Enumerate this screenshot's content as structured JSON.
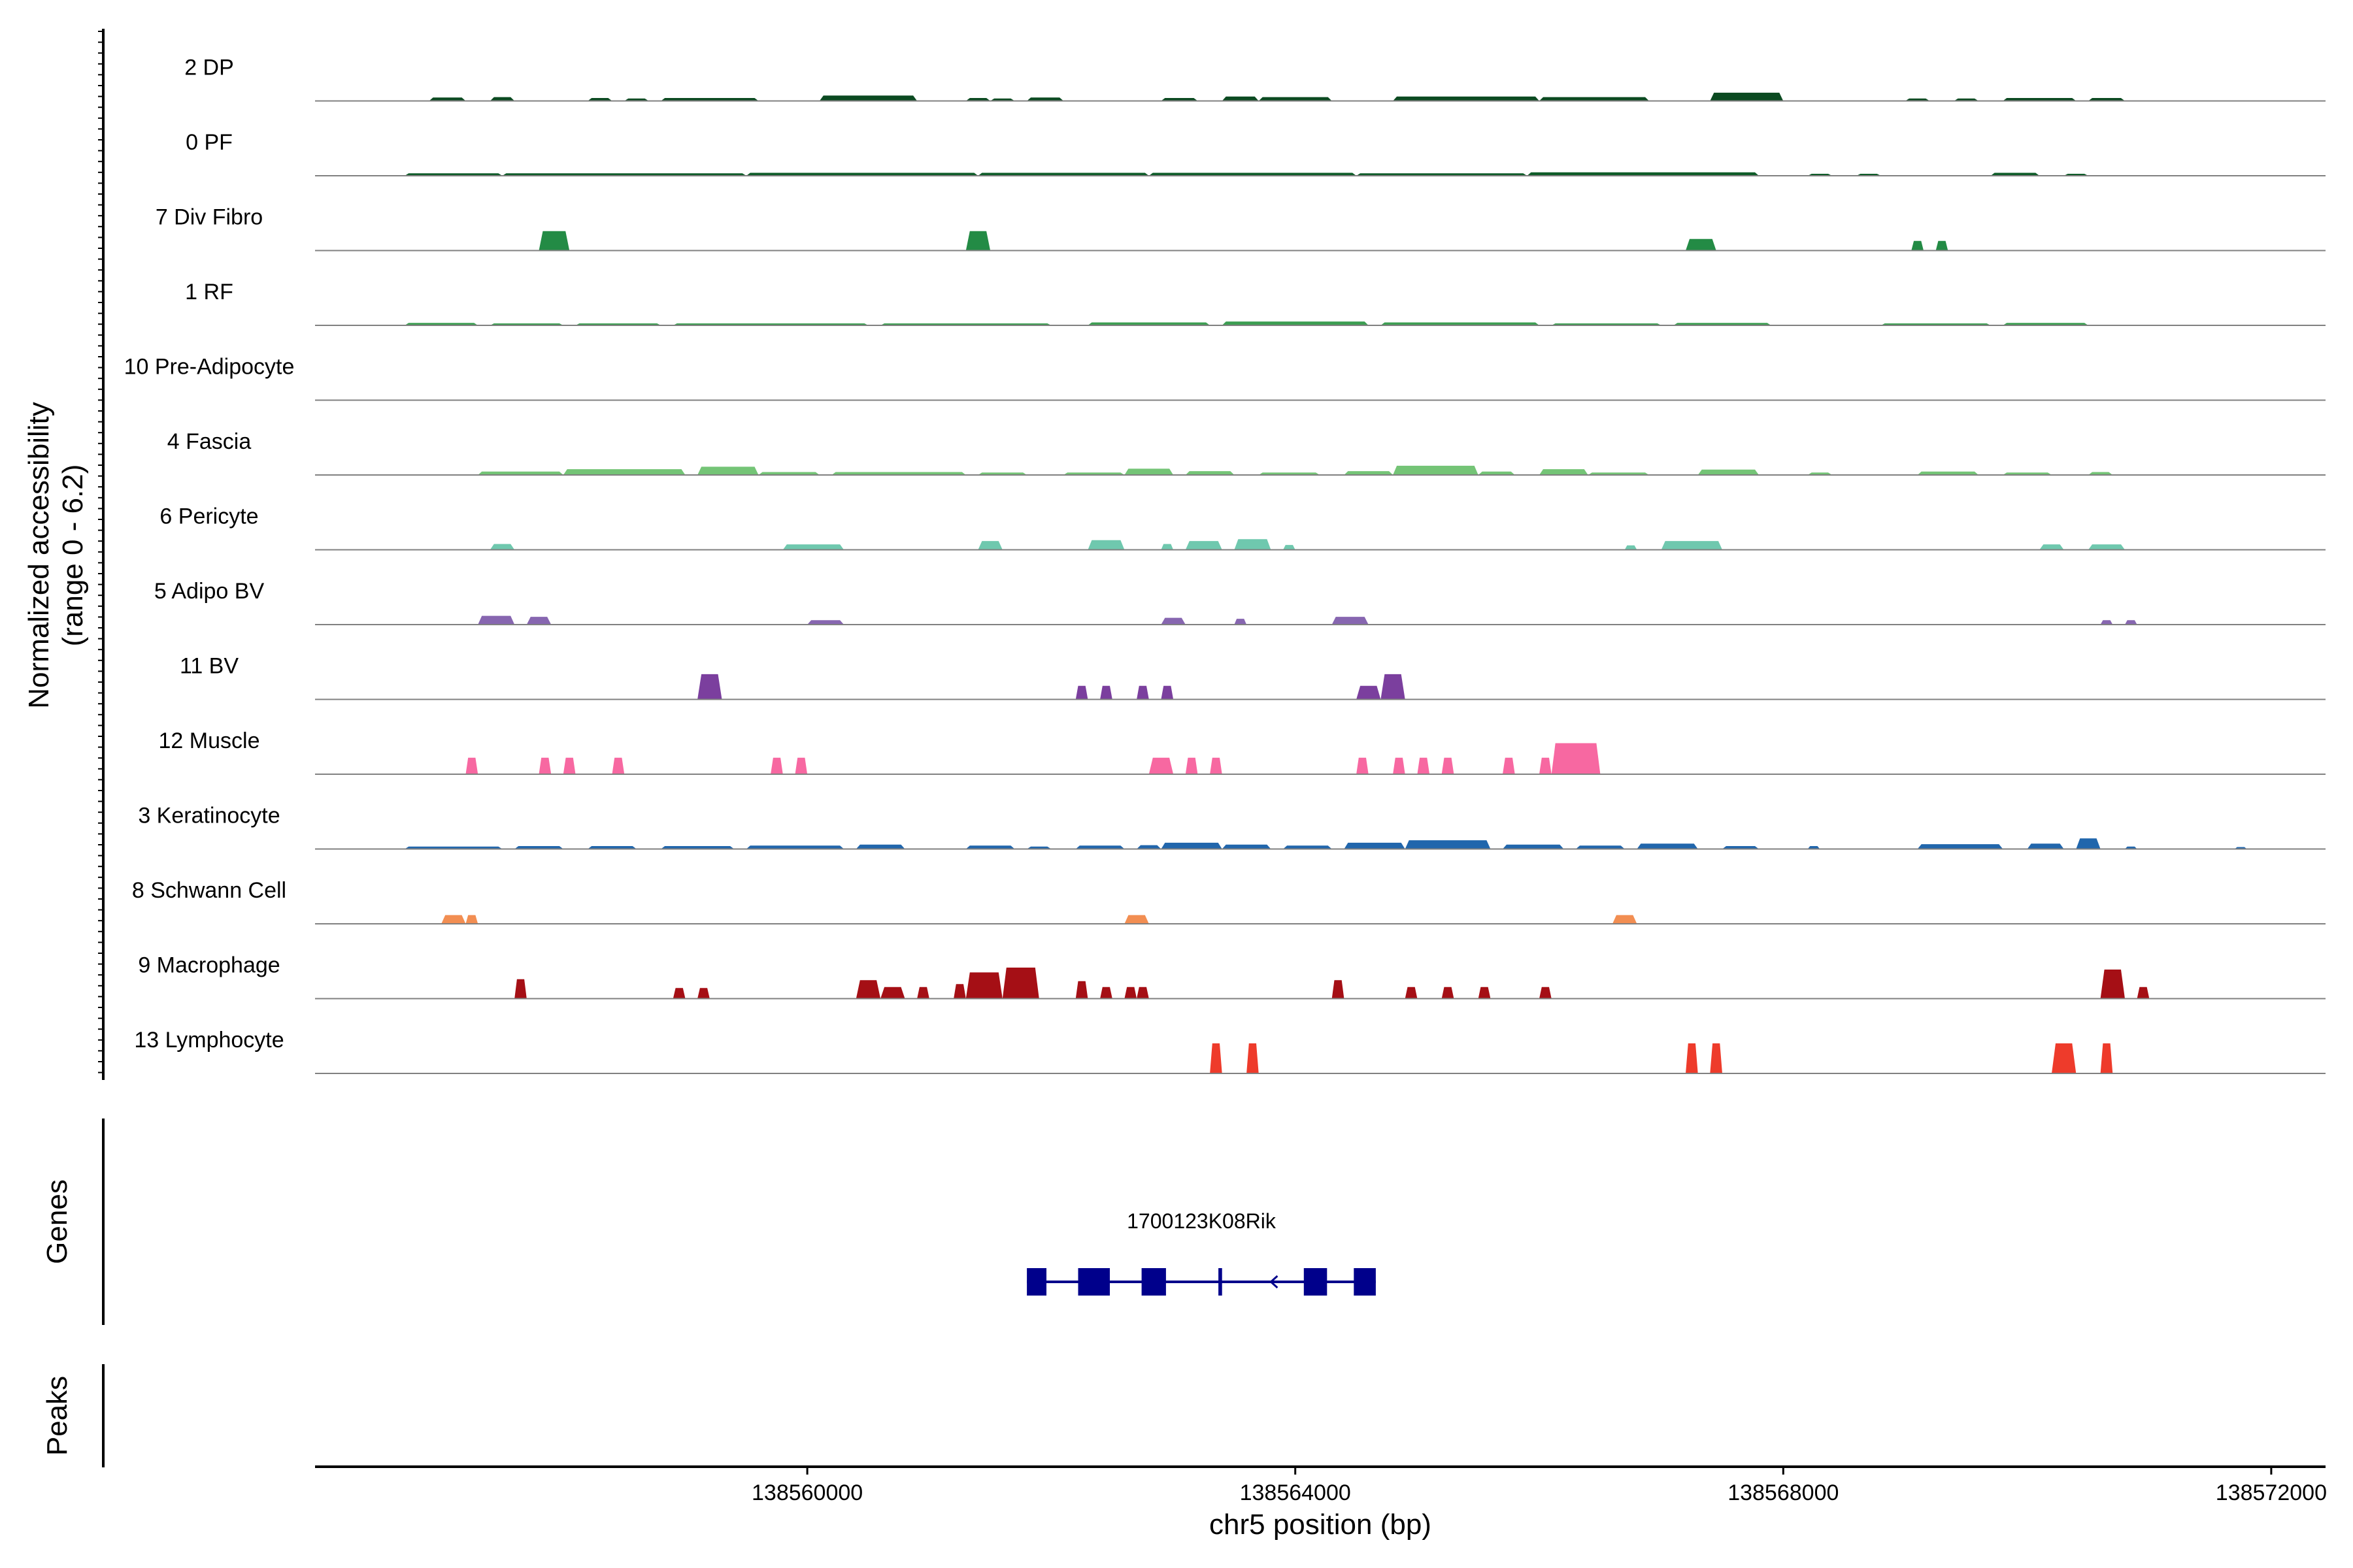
{
  "chart_data": {
    "type": "area",
    "title": "",
    "ylabel_lines": [
      "Normalized accessibility",
      "(range 0 - 6.2)"
    ],
    "y_range": [
      0,
      6.2
    ],
    "xlabel": "chr5 position (bp)",
    "xlim": [
      138555965,
      138572445
    ],
    "x_ticks": [
      138560000,
      138564000,
      138568000,
      138572000
    ],
    "x_tick_labels": [
      "138560000",
      "138564000",
      "138568000",
      "138572000"
    ],
    "genes_panel_label": "Genes",
    "peaks_panel_label": "Peaks",
    "tracks": [
      {
        "name": "2 DP",
        "color": "#0b4a21",
        "peaks": [
          [
            138556900,
            138557200,
            0.35
          ],
          [
            138557400,
            138557600,
            0.4
          ],
          [
            138558200,
            138558400,
            0.3
          ],
          [
            138558500,
            138558700,
            0.25
          ],
          [
            138558800,
            138559600,
            0.3
          ],
          [
            138560100,
            138560900,
            0.55
          ],
          [
            138561300,
            138561500,
            0.3
          ],
          [
            138561500,
            138561700,
            0.25
          ],
          [
            138561800,
            138562100,
            0.35
          ],
          [
            138562900,
            138563200,
            0.3
          ],
          [
            138563400,
            138563700,
            0.45
          ],
          [
            138563700,
            138564300,
            0.4
          ],
          [
            138564800,
            138566000,
            0.45
          ],
          [
            138566000,
            138566900,
            0.4
          ],
          [
            138567400,
            138568000,
            0.85
          ],
          [
            138569000,
            138569200,
            0.25
          ],
          [
            138569400,
            138569600,
            0.25
          ],
          [
            138569800,
            138570400,
            0.3
          ],
          [
            138570500,
            138570800,
            0.3
          ]
        ]
      },
      {
        "name": "0 PF",
        "color": "#0e5c28",
        "peaks": [
          [
            138556700,
            138557500,
            0.25
          ],
          [
            138557500,
            138559500,
            0.25
          ],
          [
            138559500,
            138561400,
            0.3
          ],
          [
            138561400,
            138562800,
            0.3
          ],
          [
            138562800,
            138564500,
            0.3
          ],
          [
            138564500,
            138565900,
            0.25
          ],
          [
            138565900,
            138567800,
            0.35
          ],
          [
            138568200,
            138568400,
            0.2
          ],
          [
            138568600,
            138568800,
            0.2
          ],
          [
            138569700,
            138570100,
            0.3
          ],
          [
            138570300,
            138570500,
            0.2
          ]
        ]
      },
      {
        "name": "7 Div Fibro",
        "color": "#238b45",
        "peaks": [
          [
            138557800,
            138558050,
            2.0
          ],
          [
            138561300,
            138561500,
            2.0
          ],
          [
            138567200,
            138567450,
            1.2
          ],
          [
            138569050,
            138569150,
            1.0
          ],
          [
            138569250,
            138569350,
            1.0
          ]
        ]
      },
      {
        "name": "1 RF",
        "color": "#3c9e52",
        "peaks": [
          [
            138556700,
            138557300,
            0.25
          ],
          [
            138557400,
            138558000,
            0.2
          ],
          [
            138558100,
            138558800,
            0.2
          ],
          [
            138558900,
            138560500,
            0.2
          ],
          [
            138560600,
            138562000,
            0.2
          ],
          [
            138562300,
            138563300,
            0.3
          ],
          [
            138563400,
            138564600,
            0.4
          ],
          [
            138564700,
            138566000,
            0.3
          ],
          [
            138566100,
            138567000,
            0.2
          ],
          [
            138567100,
            138567900,
            0.25
          ],
          [
            138568800,
            138569700,
            0.2
          ],
          [
            138569800,
            138570500,
            0.25
          ]
        ]
      },
      {
        "name": "10 Pre-Adipocyte",
        "color": "#55b168",
        "peaks": []
      },
      {
        "name": "4 Fascia",
        "color": "#74c476",
        "peaks": [
          [
            138557300,
            138558000,
            0.35
          ],
          [
            138558000,
            138559000,
            0.6
          ],
          [
            138559100,
            138559600,
            0.85
          ],
          [
            138559600,
            138560100,
            0.3
          ],
          [
            138560200,
            138561300,
            0.3
          ],
          [
            138561400,
            138561800,
            0.25
          ],
          [
            138562100,
            138562600,
            0.25
          ],
          [
            138562600,
            138563000,
            0.65
          ],
          [
            138563100,
            138563500,
            0.4
          ],
          [
            138563700,
            138564200,
            0.25
          ],
          [
            138564400,
            138564800,
            0.4
          ],
          [
            138564800,
            138565500,
            0.95
          ],
          [
            138565500,
            138565800,
            0.35
          ],
          [
            138566000,
            138566400,
            0.6
          ],
          [
            138566400,
            138566900,
            0.25
          ],
          [
            138567300,
            138567800,
            0.55
          ],
          [
            138568200,
            138568400,
            0.25
          ],
          [
            138569100,
            138569600,
            0.35
          ],
          [
            138569800,
            138570200,
            0.25
          ],
          [
            138570500,
            138570700,
            0.3
          ]
        ]
      },
      {
        "name": "6 Pericyte",
        "color": "#6fc8ae",
        "peaks": [
          [
            138557400,
            138557600,
            0.6
          ],
          [
            138559800,
            138560300,
            0.55
          ],
          [
            138561400,
            138561600,
            0.9
          ],
          [
            138562300,
            138562600,
            1.0
          ],
          [
            138562900,
            138563000,
            0.6
          ],
          [
            138563100,
            138563400,
            0.9
          ],
          [
            138563500,
            138563800,
            1.1
          ],
          [
            138563900,
            138564000,
            0.5
          ],
          [
            138566700,
            138566800,
            0.45
          ],
          [
            138567000,
            138567500,
            0.9
          ],
          [
            138570100,
            138570300,
            0.55
          ],
          [
            138570500,
            138570800,
            0.55
          ]
        ]
      },
      {
        "name": "5 Adipo BV",
        "color": "#8766b0",
        "peaks": [
          [
            138557300,
            138557600,
            0.9
          ],
          [
            138557700,
            138557900,
            0.8
          ],
          [
            138560000,
            138560300,
            0.45
          ],
          [
            138562900,
            138563100,
            0.7
          ],
          [
            138563500,
            138563600,
            0.6
          ],
          [
            138564300,
            138564600,
            0.8
          ],
          [
            138570600,
            138570700,
            0.45
          ],
          [
            138570800,
            138570900,
            0.45
          ]
        ]
      },
      {
        "name": "11 BV",
        "color": "#7b3f9e",
        "peaks": [
          [
            138559100,
            138559300,
            2.6
          ],
          [
            138562200,
            138562300,
            1.4
          ],
          [
            138562400,
            138562500,
            1.4
          ],
          [
            138562700,
            138562800,
            1.4
          ],
          [
            138562900,
            138563000,
            1.4
          ],
          [
            138564500,
            138564700,
            1.4
          ],
          [
            138564700,
            138564900,
            2.6
          ]
        ]
      },
      {
        "name": "12 Muscle",
        "color": "#f768a1",
        "peaks": [
          [
            138557200,
            138557300,
            1.7
          ],
          [
            138557800,
            138557900,
            1.7
          ],
          [
            138558000,
            138558100,
            1.7
          ],
          [
            138558400,
            138558500,
            1.7
          ],
          [
            138559700,
            138559800,
            1.7
          ],
          [
            138559900,
            138560000,
            1.7
          ],
          [
            138562800,
            138563000,
            1.7
          ],
          [
            138563100,
            138563200,
            1.7
          ],
          [
            138563300,
            138563400,
            1.7
          ],
          [
            138564500,
            138564600,
            1.7
          ],
          [
            138564800,
            138564900,
            1.7
          ],
          [
            138565000,
            138565100,
            1.7
          ],
          [
            138565200,
            138565300,
            1.7
          ],
          [
            138565700,
            138565800,
            1.7
          ],
          [
            138566000,
            138566100,
            1.7
          ],
          [
            138566100,
            138566500,
            3.2
          ]
        ]
      },
      {
        "name": "3 Keratinocyte",
        "color": "#2166ac",
        "peaks": [
          [
            138556700,
            138557500,
            0.25
          ],
          [
            138557600,
            138558000,
            0.3
          ],
          [
            138558200,
            138558600,
            0.3
          ],
          [
            138558800,
            138559400,
            0.3
          ],
          [
            138559500,
            138560300,
            0.35
          ],
          [
            138560400,
            138560800,
            0.45
          ],
          [
            138561300,
            138561700,
            0.35
          ],
          [
            138561800,
            138562000,
            0.25
          ],
          [
            138562200,
            138562600,
            0.35
          ],
          [
            138562700,
            138562900,
            0.4
          ],
          [
            138562900,
            138563400,
            0.65
          ],
          [
            138563400,
            138563800,
            0.45
          ],
          [
            138563900,
            138564300,
            0.35
          ],
          [
            138564400,
            138564900,
            0.65
          ],
          [
            138564900,
            138565600,
            0.9
          ],
          [
            138565700,
            138566200,
            0.45
          ],
          [
            138566300,
            138566700,
            0.35
          ],
          [
            138566800,
            138567300,
            0.55
          ],
          [
            138567500,
            138567800,
            0.3
          ],
          [
            138568200,
            138568300,
            0.3
          ],
          [
            138569100,
            138569800,
            0.5
          ],
          [
            138570000,
            138570300,
            0.55
          ],
          [
            138570400,
            138570600,
            1.1
          ],
          [
            138570800,
            138570900,
            0.25
          ],
          [
            138571700,
            138571800,
            0.2
          ]
        ]
      },
      {
        "name": "8 Schwann Cell",
        "color": "#f28e52",
        "peaks": [
          [
            138557000,
            138557200,
            0.9
          ],
          [
            138557200,
            138557300,
            0.9
          ],
          [
            138562600,
            138562800,
            0.9
          ],
          [
            138566600,
            138566800,
            0.9
          ]
        ]
      },
      {
        "name": "9 Macrophage",
        "color": "#a50f15",
        "peaks": [
          [
            138557600,
            138557700,
            2.0
          ],
          [
            138558900,
            138559000,
            1.1
          ],
          [
            138559100,
            138559200,
            1.1
          ],
          [
            138560400,
            138560600,
            1.9
          ],
          [
            138560600,
            138560800,
            1.2
          ],
          [
            138560900,
            138561000,
            1.2
          ],
          [
            138561200,
            138561300,
            1.5
          ],
          [
            138561300,
            138561600,
            2.7
          ],
          [
            138561600,
            138561900,
            3.2
          ],
          [
            138562200,
            138562300,
            1.8
          ],
          [
            138562400,
            138562500,
            1.2
          ],
          [
            138562600,
            138562700,
            1.2
          ],
          [
            138562700,
            138562800,
            1.2
          ],
          [
            138564300,
            138564400,
            1.9
          ],
          [
            138564900,
            138565000,
            1.2
          ],
          [
            138565200,
            138565300,
            1.2
          ],
          [
            138565500,
            138565600,
            1.2
          ],
          [
            138566000,
            138566100,
            1.2
          ],
          [
            138570600,
            138570800,
            3.0
          ],
          [
            138570900,
            138571000,
            1.2
          ]
        ]
      },
      {
        "name": "13 Lymphocyte",
        "color": "#ee3b2b",
        "peaks": [
          [
            138563300,
            138563400,
            3.1
          ],
          [
            138563600,
            138563700,
            3.1
          ],
          [
            138567200,
            138567300,
            3.1
          ],
          [
            138567400,
            138567500,
            3.1
          ],
          [
            138570200,
            138570400,
            3.1
          ],
          [
            138570600,
            138570700,
            3.1
          ]
        ]
      }
    ],
    "gene": {
      "name": "1700123K08Rik",
      "strand": "-",
      "start": 138561800,
      "end": 138564660,
      "exons": [
        [
          138561800,
          138561960
        ],
        [
          138562220,
          138562480
        ],
        [
          138562740,
          138562940
        ],
        [
          138563370,
          138563400
        ],
        [
          138564070,
          138564260
        ],
        [
          138564480,
          138564660
        ]
      ]
    },
    "peaks_track": []
  }
}
